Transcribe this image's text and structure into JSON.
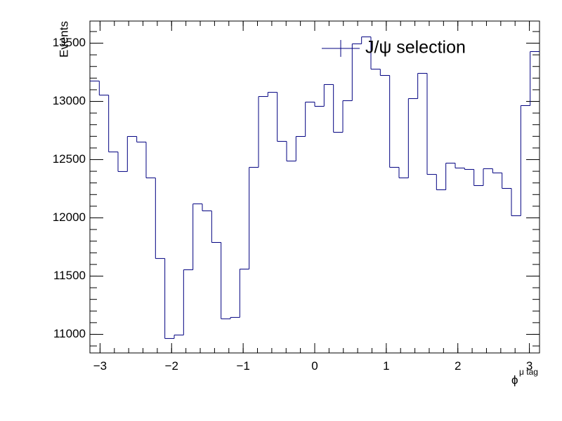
{
  "chart_data": {
    "type": "histogram",
    "ylabel": "Events",
    "xlabel": "ϕ",
    "xlabel_superscript": "μ tag",
    "series": [
      {
        "name": "J/ψ selection",
        "color": "#000080",
        "values": [
          13175,
          13054,
          12566,
          12398,
          12699,
          12651,
          12343,
          11651,
          10964,
          10994,
          11554,
          12120,
          12060,
          11789,
          11133,
          11145,
          11560,
          12434,
          13042,
          13078,
          12657,
          12488,
          12699,
          12994,
          12958,
          13145,
          12735,
          13006,
          13494,
          13554,
          13277,
          13223,
          12434,
          12343,
          13024,
          13241,
          12373,
          12241,
          12470,
          12428,
          12416,
          12277,
          12422,
          12386,
          12253,
          12018,
          12964,
          13428
        ]
      }
    ],
    "bins": [
      -3.1416,
      -3.0107,
      -2.8798,
      -2.7489,
      -2.618,
      -2.4871,
      -2.3562,
      -2.2253,
      -2.0944,
      -1.9635,
      -1.8326,
      -1.7017,
      -1.5708,
      -1.4399,
      -1.309,
      -1.1781,
      -1.0472,
      -0.9163,
      -0.7854,
      -0.6545,
      -0.5236,
      -0.3927,
      -0.2618,
      -0.1309,
      0,
      0.1309,
      0.2618,
      0.3927,
      0.5236,
      0.6545,
      0.7854,
      0.9163,
      1.0472,
      1.1781,
      1.309,
      1.4399,
      1.5708,
      1.7017,
      1.8326,
      1.9635,
      2.0944,
      2.2253,
      2.3562,
      2.4871,
      2.618,
      2.7489,
      2.8798,
      3.0107,
      3.1416
    ],
    "xlim": [
      -3.1416,
      3.1416
    ],
    "xticks": [
      {
        "value": -3,
        "label": "−3"
      },
      {
        "value": -2,
        "label": "−2"
      },
      {
        "value": -1,
        "label": "−1"
      },
      0,
      1,
      2,
      3
    ],
    "ylim": [
      10840,
      13690
    ],
    "yticks": [
      11000,
      11500,
      12000,
      12500,
      13000,
      13500
    ],
    "legend": "top-right",
    "grid": false
  }
}
